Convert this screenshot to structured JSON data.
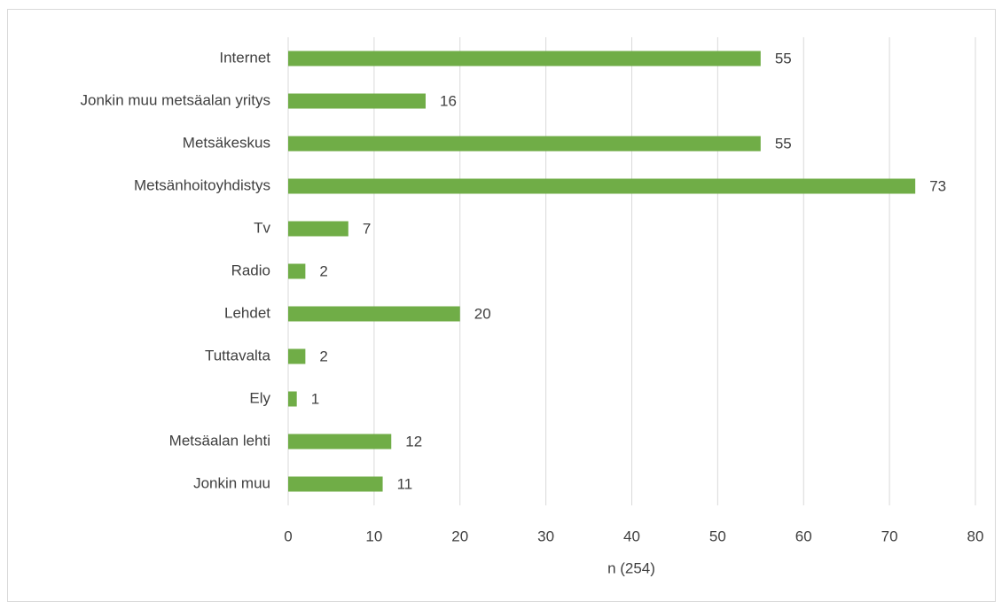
{
  "chart_data": {
    "type": "bar",
    "orientation": "horizontal",
    "categories": [
      "Internet",
      "Jonkin muu metsäalan yritys",
      "Metsäkeskus",
      "Metsänhoitoyhdistys",
      "Tv",
      "Radio",
      "Lehdet",
      "Tuttavalta",
      "Ely",
      "Metsäalan lehti",
      "Jonkin muu"
    ],
    "values": [
      55,
      16,
      55,
      73,
      7,
      2,
      20,
      2,
      1,
      12,
      11
    ],
    "color": "#70ad47",
    "xlabel": "n (254)",
    "xlim": [
      0,
      80
    ],
    "xticks": [
      0,
      10,
      20,
      30,
      40,
      50,
      60,
      70,
      80
    ],
    "grid": true
  }
}
